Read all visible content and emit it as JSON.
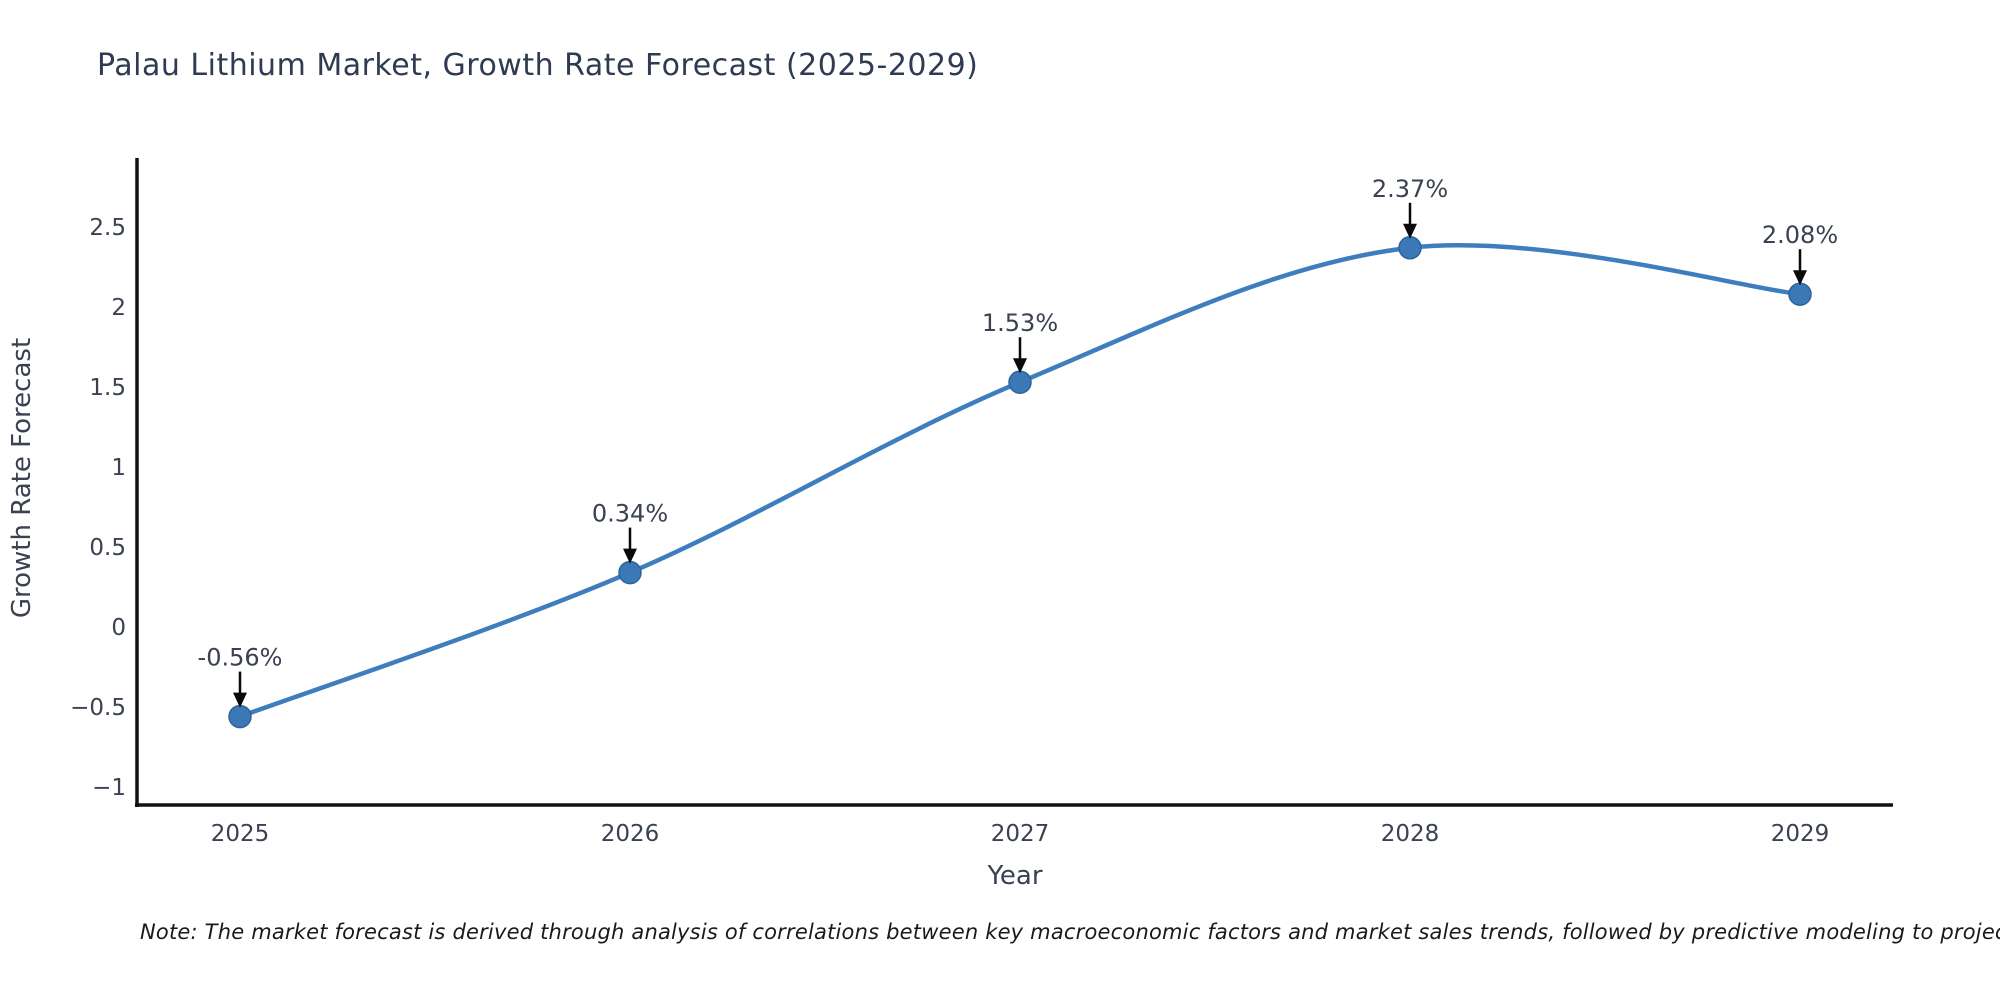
{
  "note": "Note: The market forecast is derived through analysis of correlations between key macroeconomic factors and market sales trends, followed by predictive modeling to project future sales",
  "chart_data": {
    "type": "line",
    "title": "Palau Lithium Market, Growth Rate Forecast (2025-2029)",
    "xlabel": "Year",
    "ylabel": "Growth Rate Forecast",
    "x": [
      2025,
      2026,
      2027,
      2028,
      2029
    ],
    "xtick_labels": [
      "2025",
      "2026",
      "2027",
      "2028",
      "2029"
    ],
    "values": [
      -0.56,
      0.34,
      1.53,
      2.37,
      2.08
    ],
    "point_labels": [
      "-0.56%",
      "0.34%",
      "1.53%",
      "2.37%",
      "2.08%"
    ],
    "yticks": [
      -1,
      -0.5,
      0,
      0.5,
      1,
      1.5,
      2,
      2.5
    ],
    "ytick_labels": [
      "−1",
      "−0.5",
      "0",
      "0.5",
      "1",
      "1.5",
      "2",
      "2.5"
    ],
    "ylim": [
      -1.1,
      2.8
    ],
    "grid": false,
    "legend": "none",
    "colors": {
      "line": "#3e7ebf",
      "marker_fill": "#3b79b6",
      "marker_edge": "#2d639c",
      "axis": "#111111",
      "tick_label": "#3a4150",
      "axis_title": "#3a4150",
      "chart_title": "#2f3b52",
      "annotation_text": "#3a4150",
      "annotation_arrow": "#0a0a0a",
      "background": "#ffffff"
    }
  }
}
